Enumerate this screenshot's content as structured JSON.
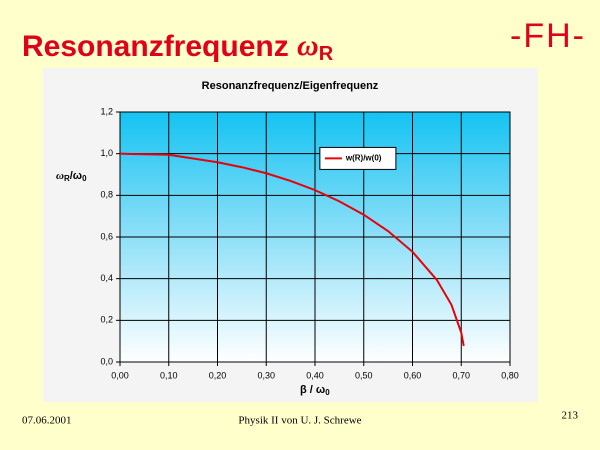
{
  "slide": {
    "title": [
      "Resonanzfrequenz ",
      "ω",
      "R"
    ],
    "logo": "-FH-",
    "date": "07.06.2001",
    "footer": "Physik II von U. J. Schrewe",
    "page": "213"
  },
  "chart_data": {
    "type": "line",
    "title": "Resonanzfrequenz/Eigenfrequenz",
    "x_label": [
      "β",
      " / ω",
      "0"
    ],
    "y_label": [
      "ω",
      "R",
      "/ω",
      "0"
    ],
    "x": [
      0,
      0.05,
      0.1,
      0.15,
      0.2,
      0.25,
      0.3,
      0.35,
      0.4,
      0.45,
      0.5,
      0.55,
      0.6,
      0.65,
      0.68,
      0.7,
      0.705
    ],
    "series": [
      {
        "name": "w(R)/w(0)",
        "color": "#e8000a",
        "values": [
          1,
          0.997,
          0.995,
          0.977,
          0.959,
          0.935,
          0.906,
          0.869,
          0.825,
          0.771,
          0.707,
          0.628,
          0.529,
          0.394,
          0.274,
          0.141,
          0.077
        ]
      }
    ],
    "xlim": [
      0,
      0.8
    ],
    "ylim": [
      0,
      1.2
    ],
    "xticks": [
      {
        "value": 0,
        "label": "0,00"
      },
      {
        "value": 0.1,
        "label": "0,10"
      },
      {
        "value": 0.2,
        "label": "0,20"
      },
      {
        "value": 0.3,
        "label": "0,30"
      },
      {
        "value": 0.4,
        "label": "0,40"
      },
      {
        "value": 0.5,
        "label": "0,50"
      },
      {
        "value": 0.6,
        "label": "0,60"
      },
      {
        "value": 0.7,
        "label": "0,70"
      },
      {
        "value": 0.8,
        "label": "0,80"
      }
    ],
    "yticks": [
      {
        "value": 0,
        "label": "0,0"
      },
      {
        "value": 0.2,
        "label": "0,2"
      },
      {
        "value": 0.4,
        "label": "0,4"
      },
      {
        "value": 0.6,
        "label": "0,6"
      },
      {
        "value": 0.8,
        "label": "0,8"
      },
      {
        "value": 1,
        "label": "1,0"
      },
      {
        "value": 1.2,
        "label": "1,2"
      }
    ],
    "grid": true,
    "legend": "upper right"
  }
}
